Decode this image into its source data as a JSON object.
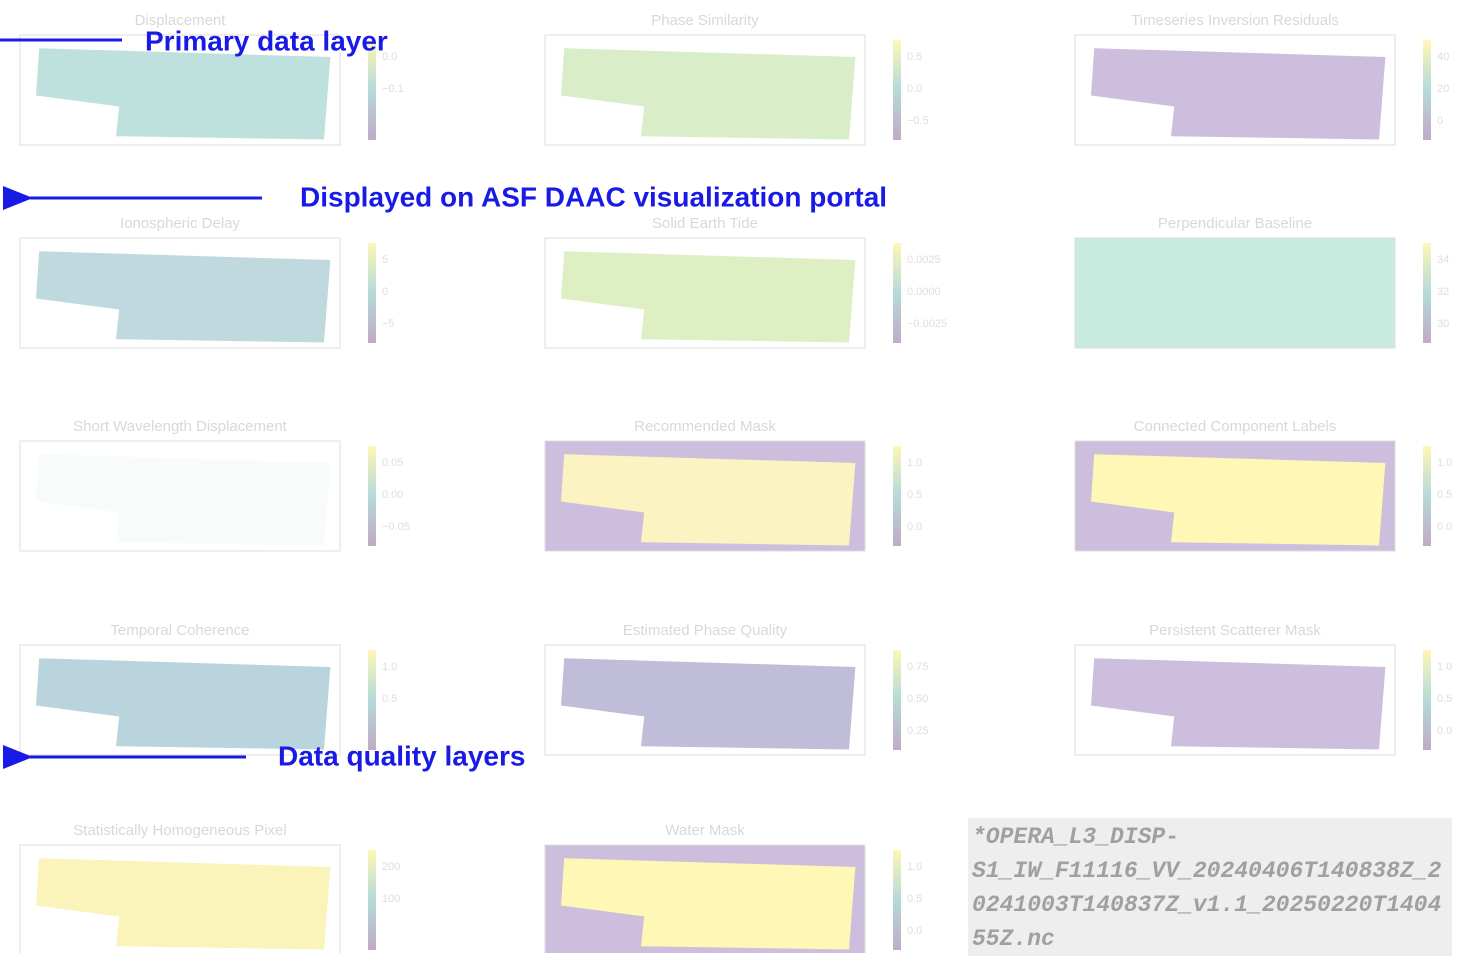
{
  "panels": [
    {
      "title": "Displacement",
      "ticks": [
        "0.0",
        "−0.1"
      ]
    },
    {
      "title": "Phase Similarity",
      "ticks": [
        "0.5",
        "0.0",
        "−0.5"
      ]
    },
    {
      "title": "Timeseries Inversion Residuals",
      "ticks": [
        "40",
        "20",
        "0"
      ]
    },
    {
      "title": "Ionospheric Delay",
      "ticks": [
        "5",
        "0",
        "−5"
      ]
    },
    {
      "title": "Solid Earth Tide",
      "ticks": [
        "0.0025",
        "0.0000",
        "−0.0025"
      ]
    },
    {
      "title": "Perpendicular Baseline",
      "ticks": [
        "34",
        "32",
        "30"
      ]
    },
    {
      "title": "Short Wavelength Displacement",
      "ticks": [
        "0.05",
        "0.00",
        "−0.05"
      ]
    },
    {
      "title": "Recommended Mask",
      "ticks": [
        "1.0",
        "0.5",
        "0.0"
      ]
    },
    {
      "title": "Connected Component Labels",
      "ticks": [
        "1.0",
        "0.5",
        "0.0"
      ]
    },
    {
      "title": "Temporal Coherence",
      "ticks": [
        "1.0",
        "0.5"
      ]
    },
    {
      "title": "Estimated Phase Quality",
      "ticks": [
        "0.75",
        "0.50",
        "0.25"
      ]
    },
    {
      "title": "Persistent Scatterer Mask",
      "ticks": [
        "1.0",
        "0.5",
        "0.0"
      ]
    },
    {
      "title": "Statistically Homogeneous Pixel",
      "ticks": [
        "200",
        "100"
      ]
    },
    {
      "title": "Water Mask",
      "ticks": [
        "1.0",
        "0.5",
        "0.0"
      ]
    }
  ],
  "annotations": {
    "primary": "Primary data layer",
    "portal": "Displayed on ASF DAAC visualization portal",
    "quality": "Data quality layers"
  },
  "footnote": "*OPERA_L3_DISP-S1_IW_F11116_VV_20240406T140838Z_20241003T140837Z_v1.1_20250220T140455Z.nc"
}
